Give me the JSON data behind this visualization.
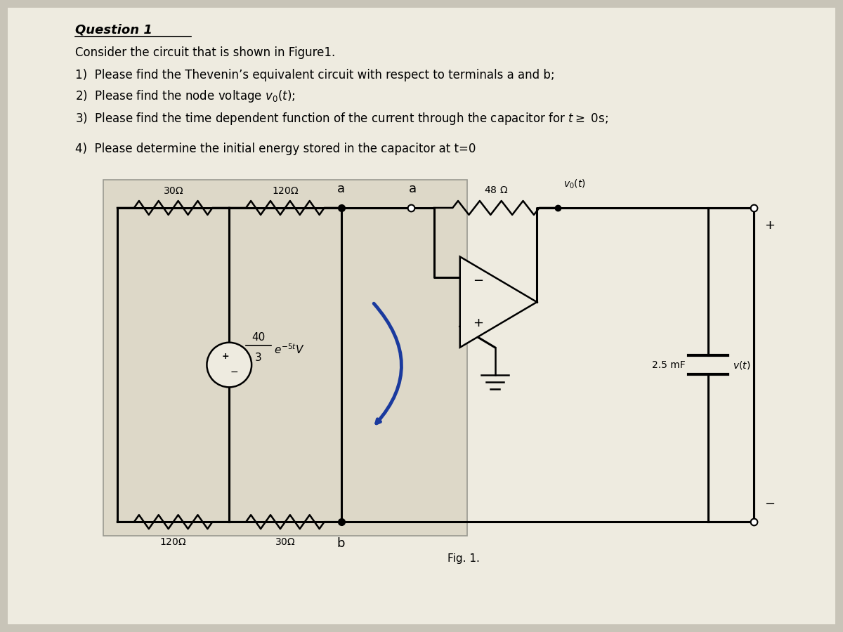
{
  "title": "Question 1",
  "intro": "Consider the circuit that is shown in Figure1.",
  "q1": "1)  Please find the Thevenin’s equivalent circuit with respect to terminals a and b;",
  "q2_plain": "2)  Please find the node voltage ",
  "q2_math": "$v_0(t)$",
  "q2_end": ";",
  "q3": "3)  Please find the time dependent function of the current through the capacitor for $t \\geq$ 0s;",
  "q4": "4)  Please determine the initial energy stored in the capacitor at t=0",
  "fig_label": "Fig. 1.",
  "bg_color": "#c8c4b8",
  "paper_color": "#eeebe0",
  "circuit_bg": "#ddd8c8"
}
